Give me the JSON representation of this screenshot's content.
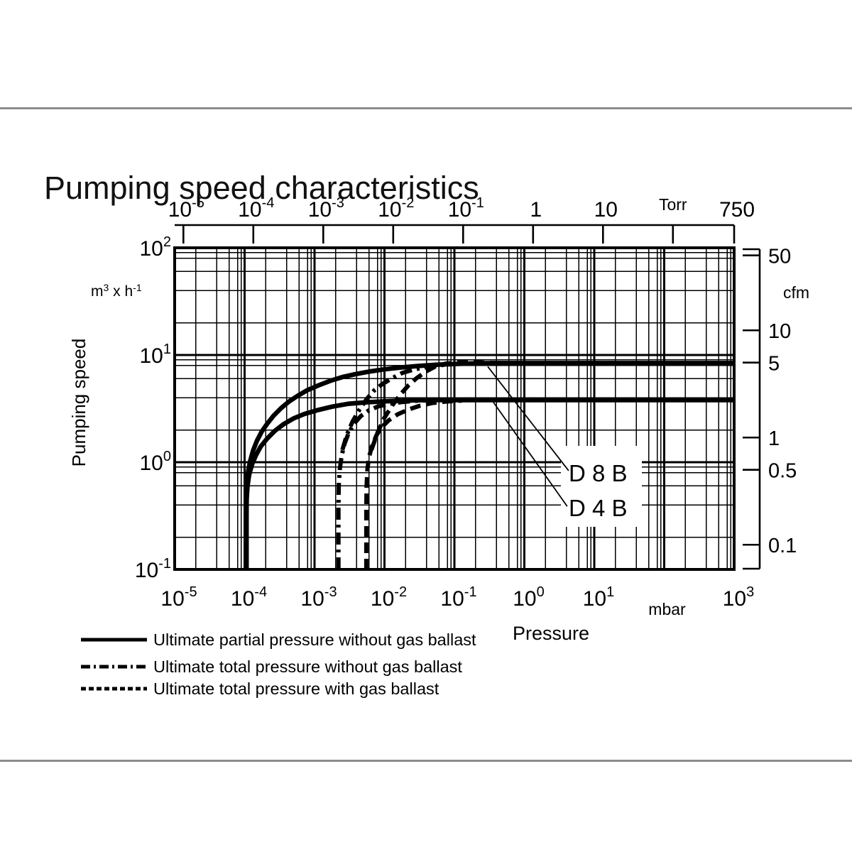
{
  "page": {
    "title": "Pumping speed characteristics",
    "colors": {
      "ink": "#000000",
      "divider": "#8c8c8c",
      "background": "#ffffff"
    }
  },
  "chart_data": {
    "type": "line",
    "title": "Pumping speed characteristics",
    "scales": {
      "x": "log",
      "y": "log"
    },
    "grid": {
      "minor_multiples": [
        2,
        4,
        6,
        8,
        9
      ],
      "grid_on": true
    },
    "axes": {
      "bottom": {
        "label": "Pressure",
        "unit": "mbar",
        "range": [
          1e-05,
          1000
        ],
        "unit_at_value": 100,
        "ticks": [
          {
            "v": 1e-05,
            "label": [
              {
                "t": "10"
              },
              {
                "t": "-5",
                "sup": 1
              }
            ]
          },
          {
            "v": 0.0001,
            "label": [
              {
                "t": "10"
              },
              {
                "t": "-4",
                "sup": 1
              }
            ]
          },
          {
            "v": 0.001,
            "label": [
              {
                "t": "10"
              },
              {
                "t": "-3",
                "sup": 1
              }
            ]
          },
          {
            "v": 0.01,
            "label": [
              {
                "t": "10"
              },
              {
                "t": "-2",
                "sup": 1
              }
            ]
          },
          {
            "v": 0.1,
            "label": [
              {
                "t": "10"
              },
              {
                "t": "-1",
                "sup": 1
              }
            ]
          },
          {
            "v": 1,
            "label": [
              {
                "t": "10"
              },
              {
                "t": "0",
                "sup": 1
              }
            ]
          },
          {
            "v": 10,
            "label": [
              {
                "t": "10"
              },
              {
                "t": "1",
                "sup": 1
              }
            ]
          },
          {
            "v": 1000,
            "label": [
              {
                "t": "10"
              },
              {
                "t": "3",
                "sup": 1
              }
            ]
          }
        ]
      },
      "top": {
        "unit": "Torr",
        "mbar_per_torr": 1.33322,
        "unit_at_torr": 100,
        "ticks": [
          {
            "v": 1e-05,
            "label": [
              {
                "t": "10"
              },
              {
                "t": "-5",
                "sup": 1
              }
            ]
          },
          {
            "v": 0.0001,
            "label": [
              {
                "t": "10"
              },
              {
                "t": "-4",
                "sup": 1
              }
            ]
          },
          {
            "v": 0.001,
            "label": [
              {
                "t": "10"
              },
              {
                "t": "-3",
                "sup": 1
              }
            ]
          },
          {
            "v": 0.01,
            "label": [
              {
                "t": "10"
              },
              {
                "t": "-2",
                "sup": 1
              }
            ]
          },
          {
            "v": 0.1,
            "label": [
              {
                "t": "10"
              },
              {
                "t": "-1",
                "sup": 1
              }
            ]
          },
          {
            "v": 1,
            "label": [
              {
                "t": "1"
              }
            ]
          },
          {
            "v": 10,
            "label": [
              {
                "t": "10"
              }
            ]
          },
          {
            "v": 100,
            "label": null
          },
          {
            "v": 750,
            "label": [
              {
                "t": "750"
              }
            ]
          }
        ]
      },
      "left": {
        "label": "Pumping speed",
        "unit": [
          {
            "t": "m"
          },
          {
            "t": "3",
            "sup": 1
          },
          {
            "t": " x h"
          },
          {
            "t": "-1",
            "sup": 1
          }
        ],
        "range": [
          0.1,
          100
        ],
        "ticks": [
          {
            "v": 100,
            "label": [
              {
                "t": "10"
              },
              {
                "t": "2",
                "sup": 1
              }
            ]
          },
          {
            "v": 10,
            "label": [
              {
                "t": "10"
              },
              {
                "t": "1",
                "sup": 1
              }
            ]
          },
          {
            "v": 1,
            "label": [
              {
                "t": "10"
              },
              {
                "t": "0",
                "sup": 1
              }
            ]
          },
          {
            "v": 0.1,
            "label": [
              {
                "t": "10"
              },
              {
                "t": "-1",
                "sup": 1
              }
            ]
          }
        ]
      },
      "right": {
        "unit": "cfm",
        "m3h_per_cfm": 1.699,
        "ticks": [
          {
            "v": 50,
            "label": "50"
          },
          {
            "v": 10,
            "label": "10"
          },
          {
            "v": 5,
            "label": "5"
          },
          {
            "v": 1,
            "label": "1"
          },
          {
            "v": 0.5,
            "label": "0.5"
          },
          {
            "v": 0.1,
            "label": "0.1"
          }
        ]
      }
    },
    "series": [
      {
        "id": "d8b-ultimate-partial-no-ballast",
        "pump": "D 8 B",
        "style": "solid",
        "meaning": "Ultimate partial pressure without gas ballast",
        "points": [
          [
            0.0001062,
            0.1
          ],
          [
            0.0001062,
            0.32
          ],
          [
            0.000107,
            0.5
          ],
          [
            0.000109,
            0.66
          ],
          [
            0.000113,
            0.84
          ],
          [
            0.00012,
            1.02
          ],
          [
            0.000132,
            1.28
          ],
          [
            0.00015,
            1.58
          ],
          [
            0.000175,
            1.92
          ],
          [
            0.00021,
            2.28
          ],
          [
            0.00026,
            2.72
          ],
          [
            0.00033,
            3.18
          ],
          [
            0.00043,
            3.68
          ],
          [
            0.00058,
            4.18
          ],
          [
            0.0008,
            4.72
          ],
          [
            0.00115,
            5.22
          ],
          [
            0.0017,
            5.76
          ],
          [
            0.0025,
            6.22
          ],
          [
            0.0038,
            6.62
          ],
          [
            0.006,
            7.0
          ],
          [
            0.01,
            7.35
          ],
          [
            0.017,
            7.65
          ],
          [
            0.03,
            7.9
          ],
          [
            0.055,
            8.1
          ],
          [
            0.1,
            8.25
          ],
          [
            0.2,
            8.35
          ],
          [
            0.4,
            8.4
          ],
          [
            1000,
            8.4
          ]
        ]
      },
      {
        "id": "d4b-ultimate-partial-no-ballast",
        "pump": "D 4 B",
        "style": "solid",
        "meaning": "Ultimate partial pressure without gas ballast",
        "points": [
          [
            0.0001062,
            0.1
          ],
          [
            0.0001062,
            0.3
          ],
          [
            0.000107,
            0.46
          ],
          [
            0.00011,
            0.6
          ],
          [
            0.000116,
            0.76
          ],
          [
            0.000128,
            0.96
          ],
          [
            0.000145,
            1.16
          ],
          [
            0.00017,
            1.4
          ],
          [
            0.00021,
            1.66
          ],
          [
            0.00027,
            1.96
          ],
          [
            0.00036,
            2.26
          ],
          [
            0.0005,
            2.56
          ],
          [
            0.00072,
            2.82
          ],
          [
            0.0011,
            3.06
          ],
          [
            0.0018,
            3.3
          ],
          [
            0.003,
            3.5
          ],
          [
            0.0055,
            3.62
          ],
          [
            0.01,
            3.7
          ],
          [
            0.02,
            3.76
          ],
          [
            0.04,
            3.8
          ],
          [
            1000,
            3.8
          ]
        ]
      },
      {
        "id": "d4b-ultimate-total-no-ballast",
        "pump": "D 4 B",
        "style": "dashdot",
        "meaning": "Ultimate total pressure without gas ballast",
        "points": [
          [
            0.0022,
            0.1
          ],
          [
            0.0022,
            0.36
          ],
          [
            0.00222,
            0.6
          ],
          [
            0.0023,
            0.86
          ],
          [
            0.00245,
            1.16
          ],
          [
            0.0027,
            1.5
          ],
          [
            0.0031,
            1.9
          ],
          [
            0.0037,
            2.3
          ],
          [
            0.0046,
            2.7
          ],
          [
            0.006,
            3.05
          ],
          [
            0.008,
            3.3
          ],
          [
            0.0115,
            3.5
          ],
          [
            0.017,
            3.63
          ],
          [
            0.026,
            3.72
          ],
          [
            0.04,
            3.78
          ]
        ]
      },
      {
        "id": "d8b-ultimate-total-no-ballast",
        "pump": "D 8 B",
        "style": "dashdot",
        "meaning": "Ultimate total pressure without gas ballast",
        "points": [
          [
            0.0025,
            1.3
          ],
          [
            0.0029,
            1.8
          ],
          [
            0.0035,
            2.4
          ],
          [
            0.0044,
            3.1
          ],
          [
            0.0056,
            3.9
          ],
          [
            0.0072,
            4.7
          ],
          [
            0.0095,
            5.4
          ],
          [
            0.013,
            6.1
          ],
          [
            0.018,
            6.8
          ],
          [
            0.026,
            7.3
          ],
          [
            0.04,
            7.75
          ],
          [
            0.065,
            8.05
          ],
          [
            0.11,
            8.28
          ]
        ]
      },
      {
        "id": "d4b-ultimate-total-with-ballast",
        "pump": "D 4 B",
        "style": "dashed",
        "meaning": "Ultimate total pressure with gas ballast",
        "points": [
          [
            0.0055,
            0.1
          ],
          [
            0.0055,
            0.36
          ],
          [
            0.00555,
            0.6
          ],
          [
            0.0057,
            0.86
          ],
          [
            0.006,
            1.1
          ],
          [
            0.0066,
            1.4
          ],
          [
            0.0076,
            1.76
          ],
          [
            0.009,
            2.1
          ],
          [
            0.0115,
            2.46
          ],
          [
            0.0155,
            2.8
          ],
          [
            0.022,
            3.1
          ],
          [
            0.032,
            3.36
          ],
          [
            0.048,
            3.56
          ],
          [
            0.075,
            3.68
          ],
          [
            0.13,
            3.76
          ]
        ]
      },
      {
        "id": "d8b-ultimate-total-with-ballast",
        "pump": "D 8 B",
        "style": "dashed",
        "meaning": "Ultimate total pressure with gas ballast",
        "points": [
          [
            0.0065,
            1.3
          ],
          [
            0.008,
            1.9
          ],
          [
            0.01,
            2.6
          ],
          [
            0.013,
            3.4
          ],
          [
            0.017,
            4.3
          ],
          [
            0.022,
            5.2
          ],
          [
            0.029,
            6.1
          ],
          [
            0.039,
            7.0
          ],
          [
            0.053,
            7.8
          ],
          [
            0.075,
            8.3
          ],
          [
            0.11,
            8.55
          ],
          [
            0.17,
            8.6
          ],
          [
            0.26,
            8.5
          ],
          [
            0.4,
            8.42
          ]
        ]
      }
    ],
    "annotations": [
      {
        "label": "D 8 B",
        "line_from": [
          0.3,
          7.8
        ],
        "line_to": [
          4.3,
          0.833
        ]
      },
      {
        "label": "D 4 B",
        "line_from": [
          0.352,
          3.71
        ],
        "line_to": [
          4.1,
          0.388
        ]
      }
    ],
    "legend": [
      {
        "style": "solid",
        "label": "Ultimate partial pressure without gas ballast"
      },
      {
        "style": "dashdot",
        "label": "Ultimate total pressure without gas ballast"
      },
      {
        "style": "dashed",
        "label": "Ultimate total pressure with gas ballast"
      }
    ]
  }
}
